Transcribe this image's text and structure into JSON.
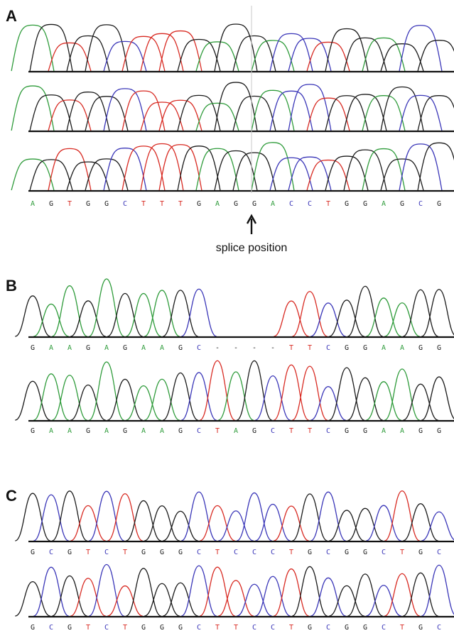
{
  "colors": {
    "A": "#2e9b3a",
    "C": "#3a36b8",
    "G": "#1a1a1a",
    "T": "#d82a22",
    "-": "#1a1a1a"
  },
  "panels": [
    {
      "label": "A",
      "tracks": 3,
      "sequence": [
        "A",
        "G",
        "T",
        "G",
        "G",
        "C",
        "T",
        "T",
        "T",
        "G",
        "A",
        "G",
        "G",
        "A",
        "C",
        "C",
        "T",
        "G",
        "G",
        "A",
        "G",
        "C",
        "G"
      ],
      "annotation": "splice position"
    },
    {
      "label": "B",
      "tracks": 1,
      "sequences": [
        [
          "G",
          "A",
          "A",
          "G",
          "A",
          "G",
          "A",
          "A",
          "G",
          "C",
          "-",
          "-",
          "-",
          "-",
          "T",
          "T",
          "C",
          "G",
          "G",
          "A",
          "A",
          "G",
          "G"
        ],
        [
          "G",
          "A",
          "A",
          "G",
          "A",
          "G",
          "A",
          "A",
          "G",
          "C",
          "T",
          "A",
          "G",
          "C",
          "T",
          "T",
          "C",
          "G",
          "G",
          "A",
          "A",
          "G",
          "G"
        ]
      ]
    },
    {
      "label": "C",
      "tracks": 1,
      "sequences": [
        [
          "G",
          "C",
          "G",
          "T",
          "C",
          "T",
          "G",
          "G",
          "G",
          "C",
          "T",
          "C",
          "C",
          "C",
          "T",
          "G",
          "C",
          "G",
          "G",
          "C",
          "T",
          "G",
          "C"
        ],
        [
          "G",
          "C",
          "G",
          "T",
          "C",
          "T",
          "G",
          "G",
          "G",
          "C",
          "T",
          "T",
          "C",
          "C",
          "T",
          "G",
          "C",
          "G",
          "G",
          "C",
          "T",
          "G",
          "C"
        ]
      ]
    }
  ]
}
